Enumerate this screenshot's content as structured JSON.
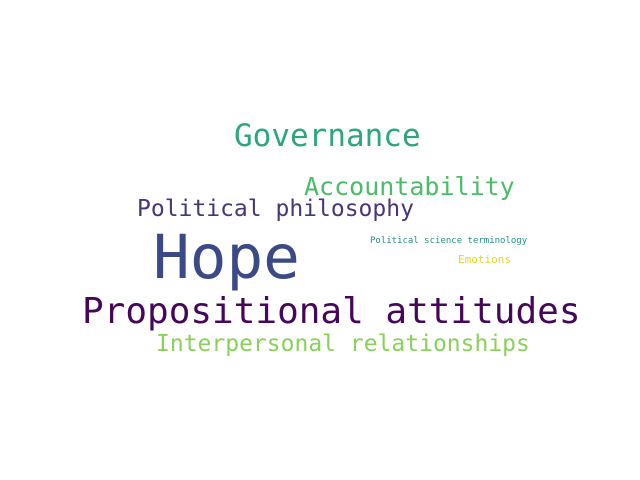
{
  "words": [
    {
      "text": "Governance",
      "color": "#2ea67f"
    },
    {
      "text": "Accountability",
      "color": "#4bbd6a"
    },
    {
      "text": "Political philosophy",
      "color": "#48357a"
    },
    {
      "text": "Hope",
      "color": "#3b4a87"
    },
    {
      "text": "Political science terminology",
      "color": "#259088"
    },
    {
      "text": "Emotions",
      "color": "#e2d52a"
    },
    {
      "text": "Propositional attitudes",
      "color": "#46075a"
    },
    {
      "text": "Interpersonal relationships",
      "color": "#88d15a"
    }
  ]
}
